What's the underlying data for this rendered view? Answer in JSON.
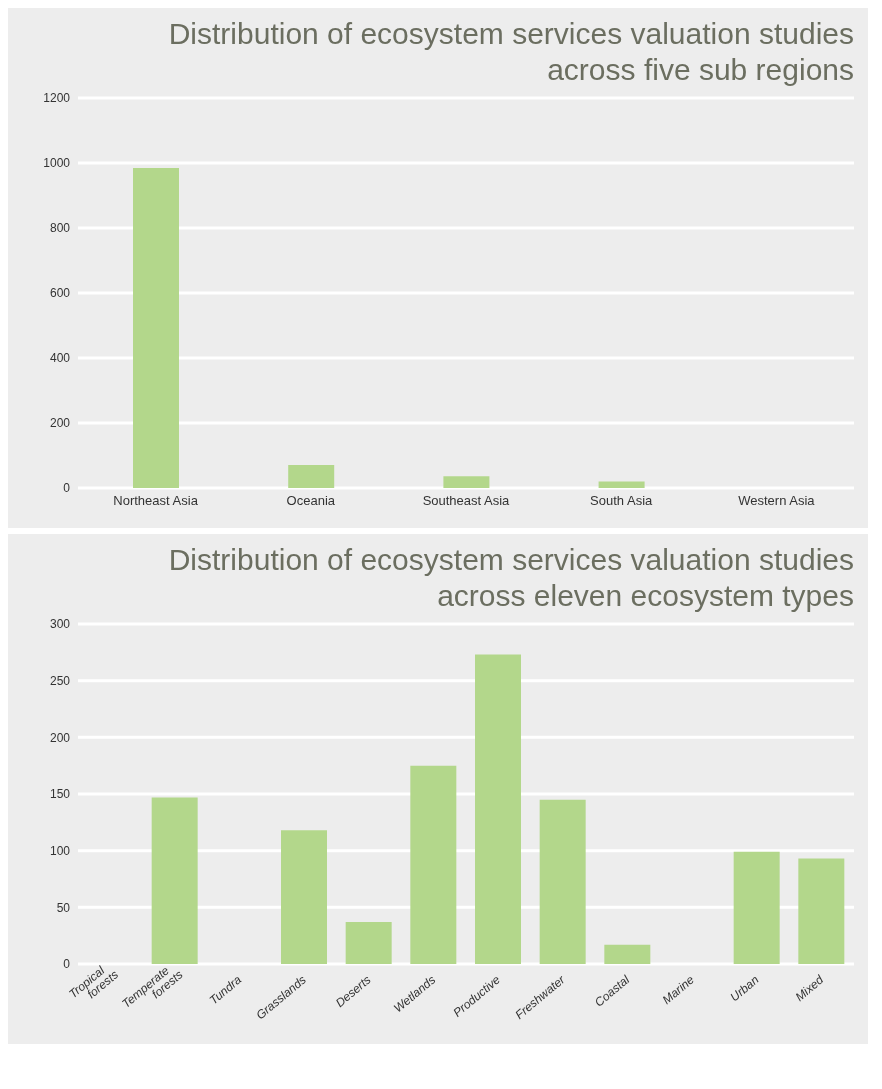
{
  "chart_data": [
    {
      "type": "bar",
      "title": "Distribution of ecosystem services valuation studies across five sub regions",
      "categories": [
        "Northeast Asia",
        "Oceania",
        "Southeast Asia",
        "South Asia",
        "Western Asia"
      ],
      "values": [
        985,
        71,
        36,
        20,
        0
      ],
      "color": "#b3d78b",
      "ylim": [
        0,
        1200
      ],
      "yticks": [
        0,
        200,
        400,
        600,
        800,
        1000,
        1200
      ],
      "grid": "y"
    },
    {
      "type": "bar",
      "title": "Distribution of ecosystem services valuation studies across eleven ecosystem types",
      "categories": [
        "Tropical forests",
        "Temperate forests",
        "Tundra",
        "Grasslands",
        "Deserts",
        "Wetlands",
        "Productive",
        "Freshwater",
        "Coastal",
        "Marine",
        "Urban",
        "Mixed"
      ],
      "values": [
        0,
        147,
        0,
        118,
        37,
        175,
        273,
        145,
        17,
        0,
        99,
        93
      ],
      "color": "#b3d78b",
      "ylim": [
        0,
        300
      ],
      "yticks": [
        0,
        50,
        100,
        150,
        200,
        250,
        300
      ],
      "grid": "y"
    }
  ]
}
